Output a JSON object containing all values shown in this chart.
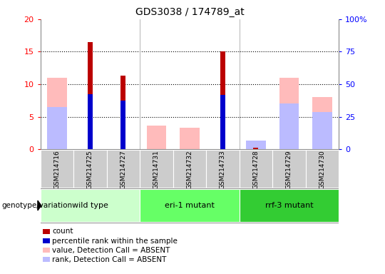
{
  "title": "GDS3038 / 174789_at",
  "samples": [
    "GSM214716",
    "GSM214725",
    "GSM214727",
    "GSM214731",
    "GSM214732",
    "GSM214733",
    "GSM214728",
    "GSM214729",
    "GSM214730"
  ],
  "count": [
    null,
    16.5,
    11.3,
    null,
    null,
    15.1,
    0.3,
    null,
    null
  ],
  "percentile_rank": [
    null,
    8.5,
    7.5,
    null,
    null,
    8.4,
    null,
    null,
    null
  ],
  "value_absent": [
    11.0,
    null,
    null,
    3.7,
    3.3,
    null,
    null,
    11.0,
    8.0
  ],
  "rank_absent": [
    6.5,
    null,
    null,
    null,
    null,
    null,
    1.3,
    7.0,
    5.7
  ],
  "groups": [
    {
      "name": "wild type",
      "start": 0,
      "end": 2,
      "color": "#ccffcc"
    },
    {
      "name": "eri-1 mutant",
      "start": 3,
      "end": 5,
      "color": "#66ff66"
    },
    {
      "name": "rrf-3 mutant",
      "start": 6,
      "end": 8,
      "color": "#33cc33"
    }
  ],
  "ylim": [
    0,
    20
  ],
  "yticks_left": [
    0,
    5,
    10,
    15,
    20
  ],
  "yticks_right": [
    0,
    5,
    10,
    15,
    20
  ],
  "yticks_right_labels": [
    "0",
    "25",
    "50",
    "75",
    "100%"
  ],
  "color_count": "#bb0000",
  "color_percentile": "#0000cc",
  "color_value_absent": "#ffbbbb",
  "color_rank_absent": "#bbbbff",
  "bw_wide": 0.6,
  "bw_narrow": 0.15,
  "sample_bg": "#cccccc",
  "legend_items": [
    {
      "color": "#bb0000",
      "label": "count"
    },
    {
      "color": "#0000cc",
      "label": "percentile rank within the sample"
    },
    {
      "color": "#ffbbbb",
      "label": "value, Detection Call = ABSENT"
    },
    {
      "color": "#bbbbff",
      "label": "rank, Detection Call = ABSENT"
    }
  ],
  "genotype_label": "genotype/variation"
}
